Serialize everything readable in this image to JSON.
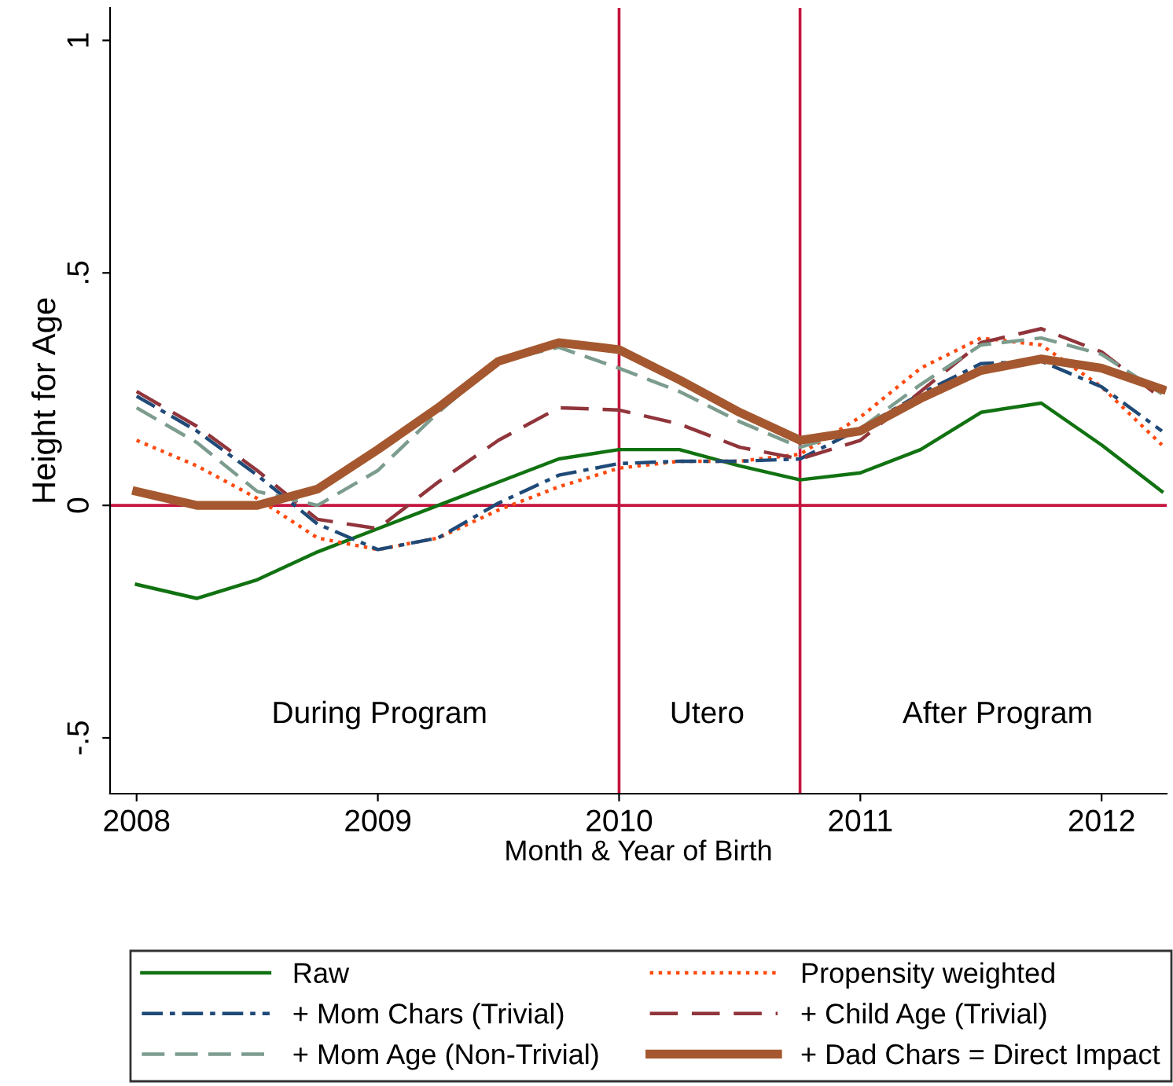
{
  "chart_data": {
    "type": "line",
    "xlabel": "Month & Year of Birth",
    "ylabel": "Height for Age",
    "x": [
      2008,
      2008.25,
      2008.5,
      2008.75,
      2009,
      2009.25,
      2009.5,
      2009.75,
      2010,
      2010.25,
      2010.5,
      2010.75,
      2011,
      2011.25,
      2011.5,
      2011.75,
      2012,
      2012.25
    ],
    "series": [
      {
        "name": "Raw",
        "color": "#117211",
        "line_style": "solid",
        "values": [
          -0.17,
          -0.2,
          -0.16,
          -0.1,
          -0.05,
          0.0,
          0.05,
          0.1,
          0.12,
          0.12,
          0.085,
          0.055,
          0.07,
          0.12,
          0.2,
          0.22,
          0.13,
          0.03
        ]
      },
      {
        "name": "Propensity weighted",
        "color": "#ff4a10",
        "line_style": "dotted",
        "values": [
          0.14,
          0.085,
          0.015,
          -0.07,
          -0.095,
          -0.07,
          -0.01,
          0.04,
          0.08,
          0.095,
          0.095,
          0.11,
          0.19,
          0.295,
          0.36,
          0.345,
          0.255,
          0.13
        ]
      },
      {
        "name": "+ Mom Chars (Trivial)",
        "color": "#1f4a78",
        "line_style": "dashdot",
        "values": [
          0.235,
          0.16,
          0.065,
          -0.04,
          -0.095,
          -0.07,
          0.005,
          0.065,
          0.09,
          0.095,
          0.095,
          0.1,
          0.165,
          0.24,
          0.305,
          0.31,
          0.255,
          0.16
        ]
      },
      {
        "name": "+ Child Age (Trivial)",
        "color": "#90353b",
        "line_style": "dashed",
        "values": [
          0.245,
          0.17,
          0.075,
          -0.03,
          -0.05,
          0.05,
          0.14,
          0.21,
          0.205,
          0.175,
          0.125,
          0.1,
          0.14,
          0.245,
          0.35,
          0.38,
          0.33,
          0.23
        ]
      },
      {
        "name": "+ Mom Age (Non-Trivial)",
        "color": "#7c9c8e",
        "line_style": "dashed",
        "values": [
          0.21,
          0.135,
          0.03,
          0.0,
          0.075,
          0.2,
          0.31,
          0.34,
          0.295,
          0.245,
          0.18,
          0.125,
          0.165,
          0.26,
          0.345,
          0.36,
          0.325,
          0.24
        ]
      },
      {
        "name": "+ Dad Chars = Direct Impact",
        "color": "#a5582f",
        "line_style": "solid",
        "values": [
          0.03,
          0.0,
          0.0,
          0.035,
          0.12,
          0.21,
          0.31,
          0.35,
          0.335,
          0.27,
          0.2,
          0.14,
          0.16,
          0.23,
          0.29,
          0.315,
          0.295,
          0.25
        ]
      }
    ],
    "xlim": [
      2007.89,
      2012.27
    ],
    "xticks": [
      2008,
      2009,
      2010,
      2011,
      2012
    ],
    "ylim": [
      -0.62,
      1.07
    ],
    "yticks": [
      {
        "value": -0.5,
        "label": "-.5"
      },
      0,
      {
        "value": 0.5,
        "label": ".5"
      },
      1
    ],
    "ref_lines": [
      {
        "axis": "x",
        "value": 2010,
        "color": "#c4143e"
      },
      {
        "axis": "x",
        "value": 2010.75,
        "color": "#c4143e"
      },
      {
        "axis": "y",
        "value": 0,
        "color": "#c4143e"
      }
    ],
    "annotations": [
      "During Program",
      "Utero",
      "After Program"
    ],
    "grid": false,
    "legend": "bottom"
  }
}
